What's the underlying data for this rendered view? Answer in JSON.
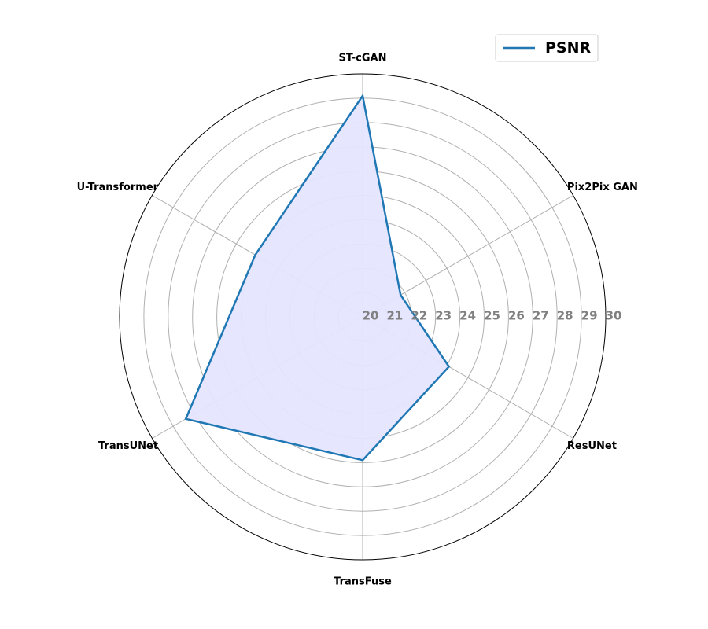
{
  "chart_data": {
    "type": "radar",
    "categories": [
      "ST-cGAN",
      "Pix2Pix GAN",
      "ResUNet",
      "TransFuse",
      "TransUNet",
      "U-Transformer"
    ],
    "series": [
      {
        "name": "PSNR",
        "values": [
          29.1,
          21.8,
          24.1,
          25.9,
          28.4,
          25.1
        ]
      }
    ],
    "rlim": [
      20,
      30
    ],
    "rticks": [
      "20",
      "21",
      "22",
      "23",
      "24",
      "25",
      "26",
      "27",
      "28",
      "29",
      "30"
    ],
    "grid": true,
    "legend": "top-right",
    "colors": {
      "line": "#1f77b4",
      "fill": "#e5e5ff",
      "grid": "#b0b0b0",
      "tick": "#808080"
    }
  }
}
